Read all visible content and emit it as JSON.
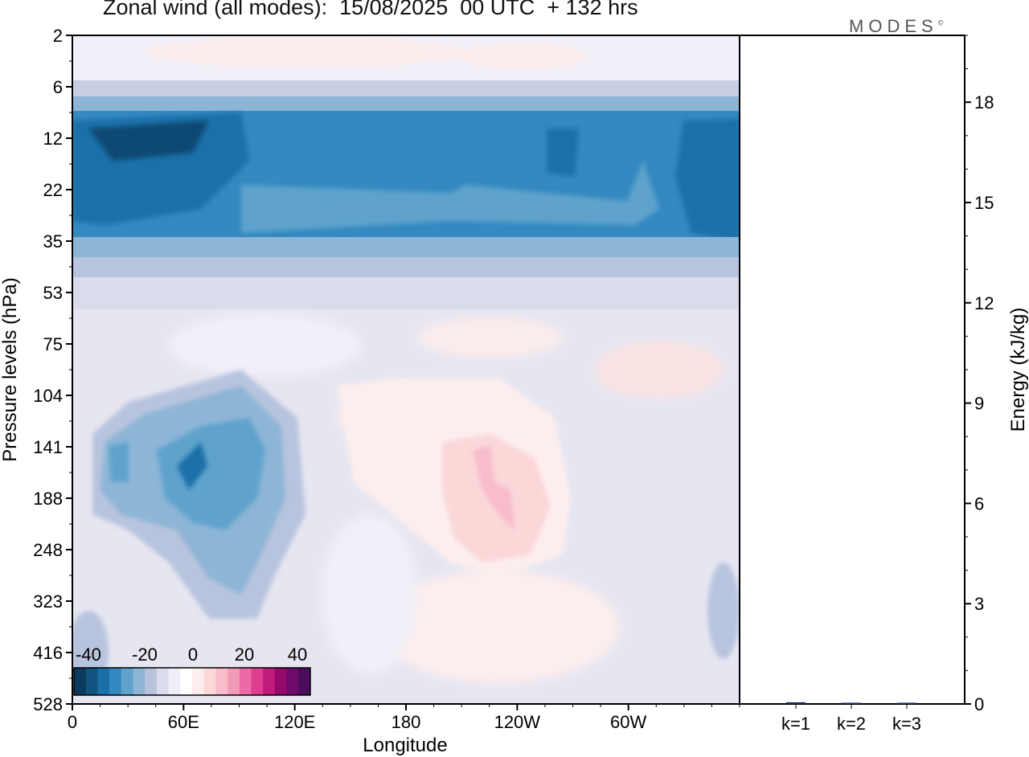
{
  "title": "Zonal wind (all modes):  15/08/2025  00 UTC  + 132 hrs",
  "logo": "MODES",
  "logo_mark": "©",
  "chart_data": [
    {
      "type": "heatmap",
      "variable": "Zonal wind",
      "xlabel": "Longitude",
      "ylabel": "Pressure levels (hPa)",
      "x_ticks": [
        "0",
        "60E",
        "120E",
        "180",
        "120W",
        "60W"
      ],
      "y_ticks": [
        "2",
        "6",
        "12",
        "22",
        "35",
        "53",
        "75",
        "104",
        "141",
        "188",
        "248",
        "323",
        "416",
        "528"
      ],
      "colorbar": {
        "tick_labels": [
          "-40",
          "-20",
          "0",
          "20",
          "40"
        ],
        "colors": [
          "#0d3a5c",
          "#11547f",
          "#1a6fa8",
          "#3389c0",
          "#5fa3cc",
          "#8db5d6",
          "#b8c4de",
          "#dadcec",
          "#eeeef6",
          "#ffffff",
          "#fdeeee",
          "#fbd7d8",
          "#f8bccb",
          "#f49ab9",
          "#ec6aa6",
          "#de3d91",
          "#bf1a7c",
          "#95096b",
          "#6e0a6a",
          "#4b0c5e"
        ]
      },
      "regions": [
        {
          "desc": "strong easterlies stratosphere",
          "lon": [
            0,
            360
          ],
          "level_top": 10,
          "level_bottom": 40,
          "value": -35
        },
        {
          "desc": "easterly core",
          "lon": [
            0,
            110
          ],
          "level_top": 12,
          "level_bottom": 25,
          "value": -40
        },
        {
          "desc": "upper trop easterlies",
          "lon": [
            20,
            120
          ],
          "level_top": 110,
          "level_bottom": 320,
          "value": -25
        },
        {
          "desc": "westerly maximum",
          "lon": [
            210,
            245
          ],
          "level_top": 130,
          "level_bottom": 250,
          "value": 10
        }
      ]
    },
    {
      "type": "bar",
      "categories": [
        "k=1",
        "k=2",
        "k=3"
      ],
      "values": [
        0.05,
        0.03,
        0.02
      ],
      "ylabel": "Energy (kJ/kg)",
      "ylim": [
        0,
        20
      ],
      "y_ticks": [
        "0",
        "3",
        "6",
        "9",
        "12",
        "15",
        "18"
      ]
    }
  ]
}
